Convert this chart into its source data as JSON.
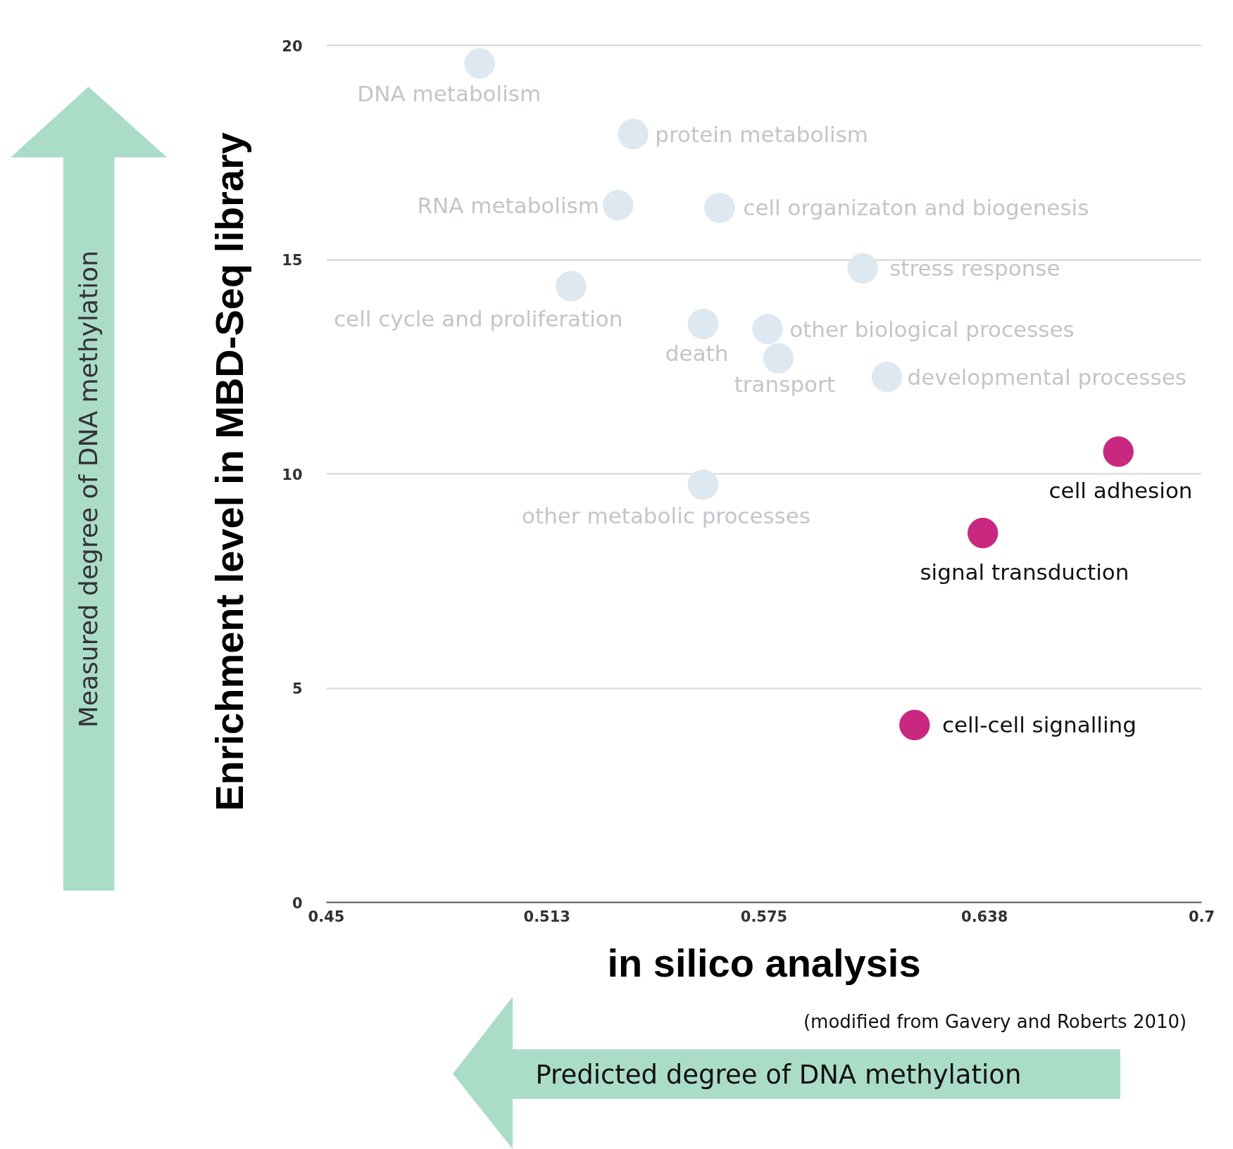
{
  "chart_data": {
    "type": "scatter",
    "xlabel": "in silico analysis",
    "ylabel": "Enrichment level in MBD-Seq library",
    "xlim": [
      0.45,
      0.7
    ],
    "xticks": [
      0.45,
      0.513,
      0.575,
      0.638,
      0.7
    ],
    "ylim": [
      0,
      20.1
    ],
    "yticks": [
      0,
      5,
      10,
      15,
      20
    ],
    "grid": "y",
    "marker": "circle",
    "series": [
      {
        "color": "#dde8f0",
        "x": [
          0.4938,
          0.5376,
          0.5333,
          0.5623,
          0.6032,
          0.5199,
          0.5576,
          0.576,
          0.5791,
          0.6101,
          0.5576
        ],
        "values": [
          19.58,
          17.93,
          16.27,
          16.21,
          14.8,
          14.38,
          13.5,
          13.38,
          12.7,
          12.26,
          9.75
        ]
      },
      {
        "color": "#c8287f",
        "x": [
          0.6762,
          0.6375,
          0.618
        ],
        "values": [
          10.52,
          8.62,
          4.14
        ]
      }
    ],
    "annotations": [
      {
        "text": "DNA metabolism",
        "x": 0.4938,
        "y": 19.58
      },
      {
        "text": "protein metabolism",
        "x": 0.5376,
        "y": 17.93
      },
      {
        "text": "RNA metabolism",
        "x": 0.5333,
        "y": 16.27
      },
      {
        "text": "cell organizaton and biogenesis",
        "x": 0.5623,
        "y": 16.21
      },
      {
        "text": "stress response",
        "x": 0.6032,
        "y": 14.8
      },
      {
        "text": "cell cycle and proliferation",
        "x": 0.5199,
        "y": 14.38
      },
      {
        "text": "death",
        "x": 0.5576,
        "y": 13.5
      },
      {
        "text": "other biological processes",
        "x": 0.576,
        "y": 13.38
      },
      {
        "text": "transport",
        "x": 0.5791,
        "y": 12.7
      },
      {
        "text": "developmental processes",
        "x": 0.6101,
        "y": 12.26
      },
      {
        "text": "other metabolic processes",
        "x": 0.5576,
        "y": 9.75
      },
      {
        "text": "cell adhesion",
        "x": 0.6762,
        "y": 10.52
      },
      {
        "text": "signal transduction",
        "x": 0.6375,
        "y": 8.62
      },
      {
        "text": "cell-cell signalling",
        "x": 0.618,
        "y": 4.14
      },
      "(modified from Gavery and Roberts 2010)",
      "Measured degree of DNA methylation",
      "Predicted degree of DNA methylation"
    ]
  }
}
